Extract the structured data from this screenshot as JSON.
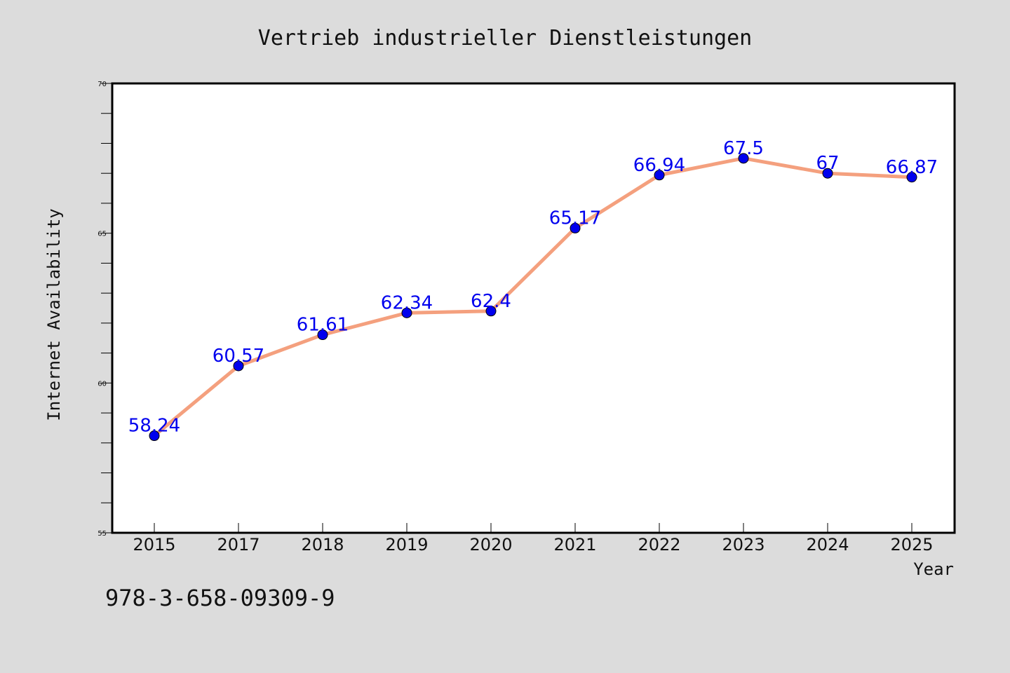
{
  "chart_data": {
    "type": "line",
    "title": "Vertrieb industrieller Dienstleistungen",
    "xlabel": "Year",
    "ylabel": "Internet Availability",
    "categories": [
      "2015",
      "2017",
      "2018",
      "2019",
      "2020",
      "2021",
      "2022",
      "2023",
      "2024",
      "2025"
    ],
    "series": [
      {
        "values": [
          58.24,
          60.57,
          61.61,
          62.34,
          62.4,
          65.17,
          66.94,
          67.5,
          67,
          66.87
        ],
        "data_labels": [
          "58.24",
          "60.57",
          "61.61",
          "62.34",
          "62.4",
          "65.17",
          "66.94",
          "67.5",
          "67",
          "66.87"
        ]
      }
    ],
    "ylim": [
      55,
      70
    ],
    "yticks": [
      "55",
      "60",
      "65",
      "70"
    ],
    "grid": false,
    "legend": "none",
    "colors": {
      "line": "#f4a07e",
      "marker": "#0000ee",
      "data_label": "#0000ee",
      "background": "#dcdcdc",
      "plot_background": "#ffffff"
    }
  },
  "footer_text": "978-3-658-09309-9"
}
